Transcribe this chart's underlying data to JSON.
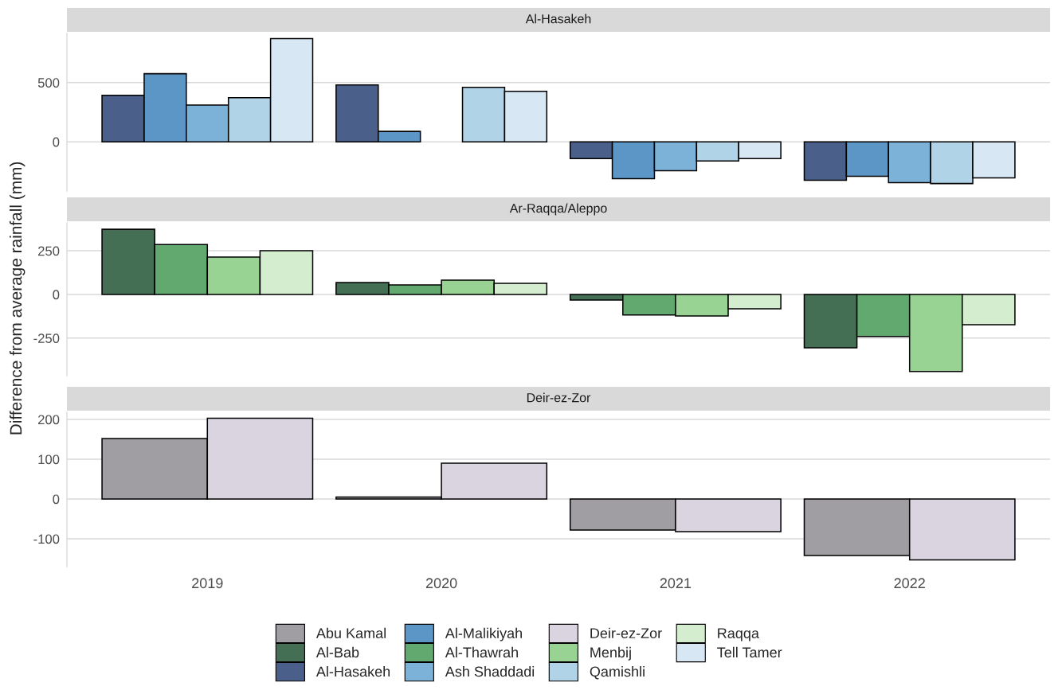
{
  "chart_data": [
    {
      "type": "bar",
      "title": "Al-Hasakeh",
      "categories": [
        "2019",
        "2020",
        "2021",
        "2022"
      ],
      "ylim": [
        -415,
        915
      ],
      "yticks": [
        0,
        500
      ],
      "grid": "y",
      "legend": "bottom",
      "tick_labels": "y",
      "series": [
        {
          "name": "Al-Hasakeh",
          "color": "#4a5f8a",
          "values": [
            392,
            480,
            -142,
            -325
          ]
        },
        {
          "name": "Al-Malikiyah",
          "color": "#5b96c7",
          "values": [
            575,
            88,
            -311,
            -291
          ]
        },
        {
          "name": "Ash Shaddadi",
          "color": "#7db2d8",
          "values": [
            311,
            null,
            -243,
            -345
          ]
        },
        {
          "name": "Qamishli",
          "color": "#b1d3e8",
          "values": [
            372,
            460,
            -162,
            -352
          ]
        },
        {
          "name": "Tell Tamer",
          "color": "#d8e7f4",
          "values": [
            872,
            426,
            -142,
            -304
          ]
        }
      ]
    },
    {
      "type": "bar",
      "title": "Ar-Raqqa/Aleppo",
      "ylabel": "Difference from average rainfall (mm)",
      "categories": [
        "2019",
        "2020",
        "2021",
        "2022"
      ],
      "ylim": [
        -465,
        410
      ],
      "yticks": [
        -250,
        0,
        250
      ],
      "grid": "y",
      "legend": "bottom",
      "tick_labels": "y",
      "series": [
        {
          "name": "Al-Bab",
          "color": "#456f55",
          "values": [
            373,
            68,
            -32,
            -305
          ]
        },
        {
          "name": "Al-Thawrah",
          "color": "#62a96f",
          "values": [
            286,
            55,
            -118,
            -241
          ]
        },
        {
          "name": "Menbij",
          "color": "#98d394",
          "values": [
            214,
            82,
            -123,
            -441
          ]
        },
        {
          "name": "Raqqa",
          "color": "#d5edcf",
          "values": [
            250,
            64,
            -82,
            -173
          ]
        }
      ]
    },
    {
      "type": "bar",
      "title": "Deir-ez-Zor",
      "categories": [
        "2019",
        "2020",
        "2021",
        "2022"
      ],
      "ylim": [
        -170,
        218
      ],
      "yticks": [
        -100,
        0,
        100,
        200
      ],
      "grid": "y",
      "legend": "bottom",
      "series": [
        {
          "name": "Abu Kamal",
          "color": "#a09da3",
          "values": [
            152,
            5,
            -78,
            -142
          ]
        },
        {
          "name": "Deir-ez-Zor",
          "color": "#d9d4df",
          "values": [
            203,
            90,
            -82,
            -153
          ]
        }
      ]
    }
  ]
}
